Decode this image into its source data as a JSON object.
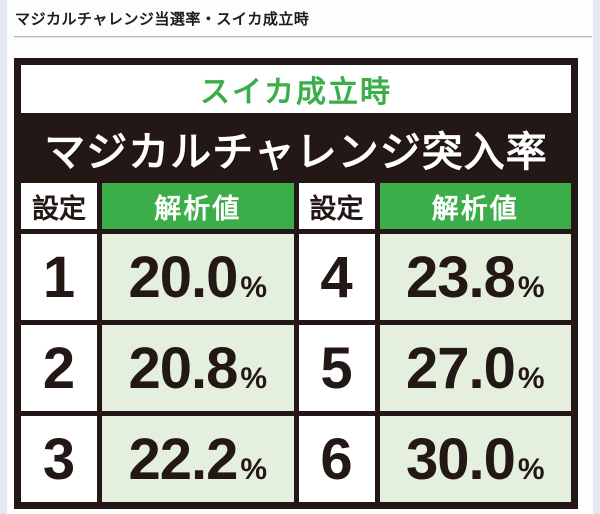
{
  "page": {
    "heading": "マジカルチャレンジ当選率・スイカ成立時"
  },
  "table": {
    "subtitle": "スイカ成立時",
    "title": "マジカルチャレンジ突入率",
    "col_setting": "設定",
    "col_value": "解析値",
    "percent_sign": "%",
    "rows": [
      {
        "left_setting": "1",
        "left_value": "20.0",
        "right_setting": "4",
        "right_value": "23.8"
      },
      {
        "left_setting": "2",
        "left_value": "20.8",
        "right_setting": "5",
        "right_value": "27.0"
      },
      {
        "left_setting": "3",
        "left_value": "22.2",
        "right_setting": "6",
        "right_value": "30.0"
      }
    ]
  },
  "colors": {
    "accent_green": "#3cae49",
    "light_green_cell": "#e5efdd",
    "table_black": "#231815",
    "page_background": "#e2e7f1"
  }
}
